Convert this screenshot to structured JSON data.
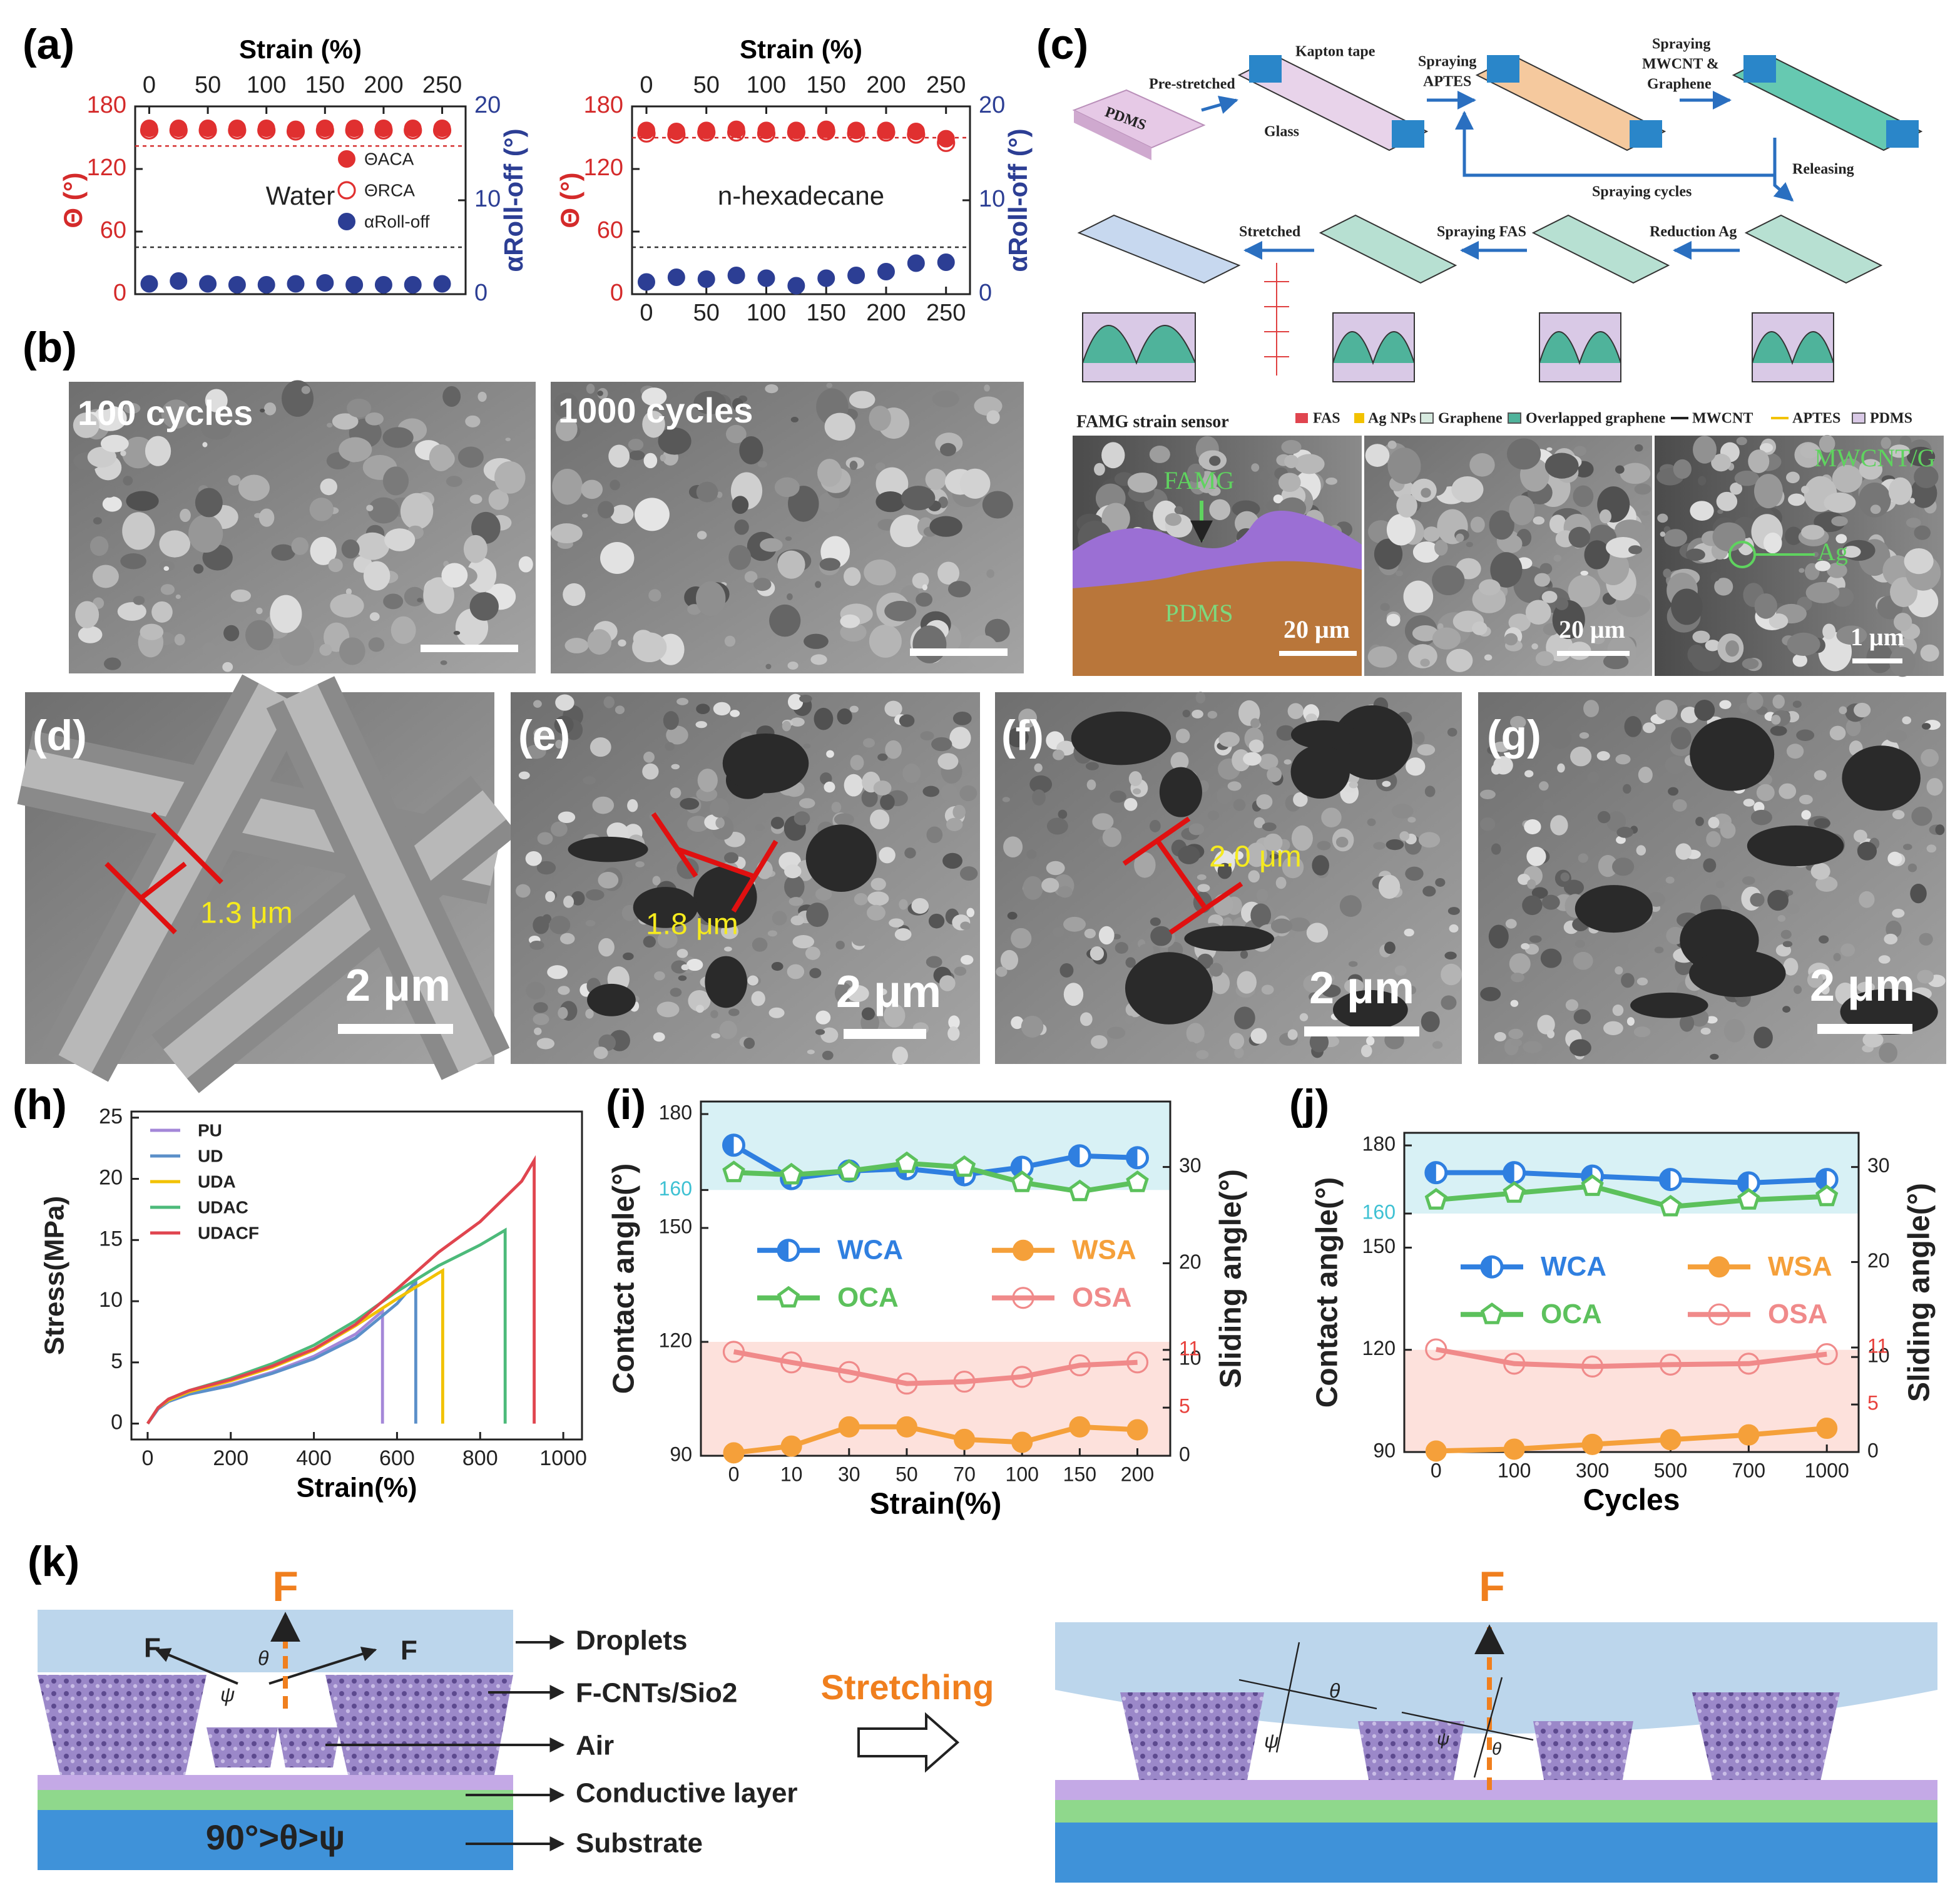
{
  "panel_labels": [
    "(a)",
    "(b)",
    "(c)",
    "(d)",
    "(e)",
    "(f)",
    "(g)",
    "(h)",
    "(i)",
    "(j)",
    "(k)"
  ],
  "chart_data": [
    {
      "type": "scatter",
      "xlabel": "Strain (%)",
      "ylabel": "Θ (°)",
      "y2label": "αRoll-off (°)",
      "annotation": "Water",
      "xlim": [
        -12,
        270
      ],
      "xticks": [
        0,
        50,
        100,
        150,
        200,
        250
      ],
      "xaxis": [
        "top"
      ],
      "ylim": [
        0,
        180
      ],
      "yticks": [
        0,
        60,
        120,
        180
      ],
      "y2lim": [
        0,
        20
      ],
      "y2ticks": [
        0,
        10,
        20
      ],
      "ycolor": "#d42a2a",
      "y2color": "#2c3e94",
      "legend": "center right",
      "reference_lines": [
        {
          "axis": "y",
          "value": 142,
          "color": "#d42a2a"
        },
        {
          "axis": "y2",
          "value": 5,
          "color": "#333333"
        }
      ],
      "x": [
        0,
        25,
        50,
        75,
        100,
        125,
        150,
        175,
        200,
        225,
        250
      ],
      "series": [
        {
          "name": "ΘACA",
          "color": "#e03030",
          "marker": "filled",
          "values": [
            159,
            159,
            159,
            159,
            159,
            158,
            159,
            159,
            159,
            159,
            159
          ]
        },
        {
          "name": "ΘRCA",
          "color": "#e03030",
          "marker": "open",
          "values": [
            157,
            157,
            157,
            157,
            157,
            156,
            157,
            157,
            157,
            157,
            157
          ]
        },
        {
          "name": "αRoll-off",
          "color": "#2c3e94",
          "marker": "filled",
          "axis": "y2",
          "values": [
            1.1,
            1.4,
            1.1,
            1.0,
            1.0,
            1.1,
            1.2,
            1.0,
            1.0,
            1.0,
            1.1
          ]
        }
      ]
    },
    {
      "type": "scatter",
      "xlabel": "Strain (%)",
      "ylabel": "Θ (°)",
      "y2label": "αRoll-off (°)",
      "annotation": "n-hexadecane",
      "xlim": [
        -12,
        270
      ],
      "xticks": [
        0,
        50,
        100,
        150,
        200,
        250
      ],
      "xaxis": [
        "top",
        "bottom"
      ],
      "ylim": [
        0,
        180
      ],
      "yticks": [
        0,
        60,
        120,
        180
      ],
      "y2lim": [
        0,
        20
      ],
      "y2ticks": [
        0,
        10,
        20
      ],
      "ycolor": "#d42a2a",
      "y2color": "#2c3e94",
      "reference_lines": [
        {
          "axis": "y",
          "value": 150,
          "color": "#d42a2a"
        },
        {
          "axis": "y2",
          "value": 5,
          "color": "#333333"
        }
      ],
      "x": [
        0,
        25,
        50,
        75,
        100,
        125,
        150,
        175,
        200,
        225,
        250
      ],
      "series": [
        {
          "name": "ΘACA",
          "color": "#e03030",
          "marker": "filled",
          "values": [
            157,
            156,
            157,
            158,
            157,
            157,
            158,
            157,
            157,
            156,
            149
          ]
        },
        {
          "name": "ΘRCA",
          "color": "#e03030",
          "marker": "open",
          "values": [
            154,
            153,
            155,
            155,
            154,
            155,
            156,
            154,
            155,
            153,
            145
          ]
        },
        {
          "name": "αRoll-off",
          "color": "#2c3e94",
          "marker": "filled",
          "axis": "y2",
          "values": [
            1.3,
            1.8,
            1.6,
            2.0,
            1.7,
            0.9,
            1.7,
            2.0,
            2.4,
            3.3,
            3.4
          ]
        }
      ]
    },
    {
      "type": "line",
      "xlabel": "Strain(%)",
      "ylabel": "Stress(MPa)",
      "xaxis": [
        "bottom"
      ],
      "xlim": [
        -39,
        1045
      ],
      "xticks": [
        0,
        200,
        400,
        600,
        800,
        1000
      ],
      "ylim": [
        -1.3,
        25.5
      ],
      "yticks": [
        0,
        5,
        10,
        15,
        20,
        25
      ],
      "legend": "upper left",
      "series": [
        {
          "name": "PU",
          "color": "#a487d8",
          "x": [
            0,
            25,
            50,
            100,
            200,
            300,
            400,
            500,
            565,
            565
          ],
          "values": [
            0,
            1.2,
            1.8,
            2.4,
            3.2,
            4.2,
            5.5,
            7.3,
            9.2,
            0
          ]
        },
        {
          "name": "UD",
          "color": "#5b8fc9",
          "x": [
            0,
            25,
            50,
            100,
            200,
            300,
            400,
            500,
            600,
            645,
            645
          ],
          "values": [
            0,
            1.2,
            1.8,
            2.4,
            3.1,
            4.1,
            5.3,
            7.0,
            9.8,
            11.6,
            0
          ]
        },
        {
          "name": "UDA",
          "color": "#f2c200",
          "x": [
            0,
            25,
            50,
            100,
            200,
            300,
            400,
            500,
            600,
            700,
            710,
            710
          ],
          "values": [
            0,
            1.3,
            1.9,
            2.6,
            3.5,
            4.6,
            6.0,
            8.0,
            10.2,
            12.3,
            12.5,
            0
          ]
        },
        {
          "name": "UDAC",
          "color": "#4cba7a",
          "x": [
            0,
            25,
            50,
            100,
            200,
            300,
            400,
            500,
            600,
            700,
            800,
            860,
            860
          ],
          "values": [
            0,
            1.3,
            2.0,
            2.7,
            3.7,
            4.9,
            6.4,
            8.4,
            10.8,
            12.9,
            14.6,
            15.8,
            0
          ]
        },
        {
          "name": "UDACF",
          "color": "#e0454f",
          "x": [
            0,
            25,
            50,
            100,
            200,
            300,
            400,
            500,
            600,
            700,
            800,
            900,
            930,
            930
          ],
          "values": [
            0,
            1.3,
            2.0,
            2.7,
            3.6,
            4.7,
            6.1,
            8.1,
            11.0,
            14.0,
            16.5,
            19.8,
            21.5,
            0
          ]
        }
      ]
    },
    {
      "type": "line",
      "xlabel": "Strain(%)",
      "ylabel": "Contact angle(°)",
      "y2label": "Sliding angle(°)",
      "xaxis": [
        "bottom"
      ],
      "markers": true,
      "categories": [
        "0",
        "10",
        "30",
        "50",
        "70",
        "100",
        "150",
        "200"
      ],
      "ylim": [
        90,
        183.3
      ],
      "yticks": [
        90,
        120,
        150,
        180
      ],
      "y2lim": [
        0,
        36.8
      ],
      "y2ticks": [
        0,
        10,
        20,
        30
      ],
      "yticks_extra": {
        "values": [
          160
        ],
        "color": "#3ec1d3"
      },
      "y2ticks_extra": {
        "values": [
          11,
          5
        ],
        "color": "#e8413c"
      },
      "bands": [
        {
          "from": 160,
          "color": "#d8f1f5"
        },
        {
          "from": 90,
          "to": 120,
          "color": "#fde1dc"
        }
      ],
      "legend": "center",
      "legend_columns": 2,
      "series": [
        {
          "name": "WCA",
          "color": "#2f7fe0",
          "marker": "half",
          "values": [
            171.8,
            163,
            165,
            165.6,
            164,
            166,
            169,
            168.5
          ]
        },
        {
          "name": "WSA",
          "color": "#f5a03a",
          "marker": "filled",
          "axis": "y2",
          "values": [
            0.3,
            1,
            3,
            3,
            1.7,
            1.4,
            3,
            2.7
          ]
        },
        {
          "name": "OCA",
          "color": "#5cc15c",
          "marker": "pentagon",
          "values": [
            164.6,
            164,
            165,
            167,
            166,
            162,
            159.6,
            162
          ]
        },
        {
          "name": "OSA",
          "color": "#f08a8a",
          "marker": "open",
          "axis": "y2",
          "values": [
            10.8,
            9.7,
            8.7,
            7.5,
            7.7,
            8.2,
            9.4,
            9.7
          ]
        }
      ]
    },
    {
      "type": "line",
      "xlabel": "Cycles",
      "ylabel": "Contact angle(°)",
      "y2label": "Sliding angle(°)",
      "xaxis": [
        "bottom"
      ],
      "markers": true,
      "categories": [
        "0",
        "100",
        "300",
        "500",
        "700",
        "1000"
      ],
      "ylim": [
        90,
        183.7
      ],
      "yticks": [
        90,
        120,
        150,
        180
      ],
      "y2lim": [
        0,
        33.6
      ],
      "y2ticks": [
        0,
        10,
        20,
        30
      ],
      "yticks_extra": {
        "values": [
          160
        ],
        "color": "#3ec1d3"
      },
      "y2ticks_extra": {
        "values": [
          11,
          5
        ],
        "color": "#e8413c"
      },
      "bands": [
        {
          "from": 160,
          "color": "#d8f1f5"
        },
        {
          "from": 90,
          "to": 120,
          "color": "#fde1dc"
        }
      ],
      "legend": "center",
      "legend_columns": 2,
      "series": [
        {
          "name": "WCA",
          "color": "#2f7fe0",
          "marker": "half",
          "values": [
            172,
            172,
            171,
            170,
            169,
            170
          ]
        },
        {
          "name": "WSA",
          "color": "#f5a03a",
          "marker": "filled",
          "axis": "y2",
          "values": [
            0.1,
            0.3,
            0.8,
            1.3,
            1.8,
            2.5
          ]
        },
        {
          "name": "OCA",
          "color": "#5cc15c",
          "marker": "pentagon",
          "values": [
            164,
            166,
            168,
            162,
            164,
            165
          ]
        },
        {
          "name": "OSA",
          "color": "#f08a8a",
          "marker": "open",
          "axis": "y2",
          "values": [
            10.8,
            9.3,
            9.0,
            9.2,
            9.3,
            10.3
          ]
        }
      ]
    }
  ],
  "panel_b": {
    "left": "100 cycles",
    "right": "1000 cycles"
  },
  "panel_c": {
    "steps": [
      "Pre-stretched",
      "Kapton tape",
      "Glass",
      "PDMS",
      "Spraying",
      "APTES",
      "Spraying",
      "MWCNT &",
      "Graphene",
      "Releasing",
      "Spraying cycles",
      "Stretched",
      "Spraying FAS",
      "Reduction Ag"
    ],
    "sensor": "FAMG strain sensor",
    "legend": [
      "FAS",
      "Ag NPs",
      "Graphene",
      "Overlapped graphene",
      "MWCNT",
      "APTES",
      "PDMS"
    ],
    "images": [
      "FAMG",
      "PDMS",
      "20 μm",
      "20 μm",
      "MWCNT/G",
      "Ag",
      "1 μm"
    ]
  },
  "panels_dg": {
    "d": [
      "1.3 μm",
      "2 μm"
    ],
    "e": [
      "1.8 μm",
      "2 μm"
    ],
    "f": [
      "2.0 μm",
      "2 μm"
    ],
    "g": [
      "2 μm"
    ]
  },
  "panel_k": {
    "left": [
      "F",
      "F",
      "F",
      "θ",
      "ψ"
    ],
    "labels": [
      "Droplets",
      "F-CNTs/Sio2",
      "Air",
      "Conductive layer",
      "Substrate"
    ],
    "condition": "90°>θ>ψ",
    "action": "Stretching",
    "right": [
      "F",
      "θ",
      "ψ",
      "θ",
      "ψ"
    ]
  }
}
